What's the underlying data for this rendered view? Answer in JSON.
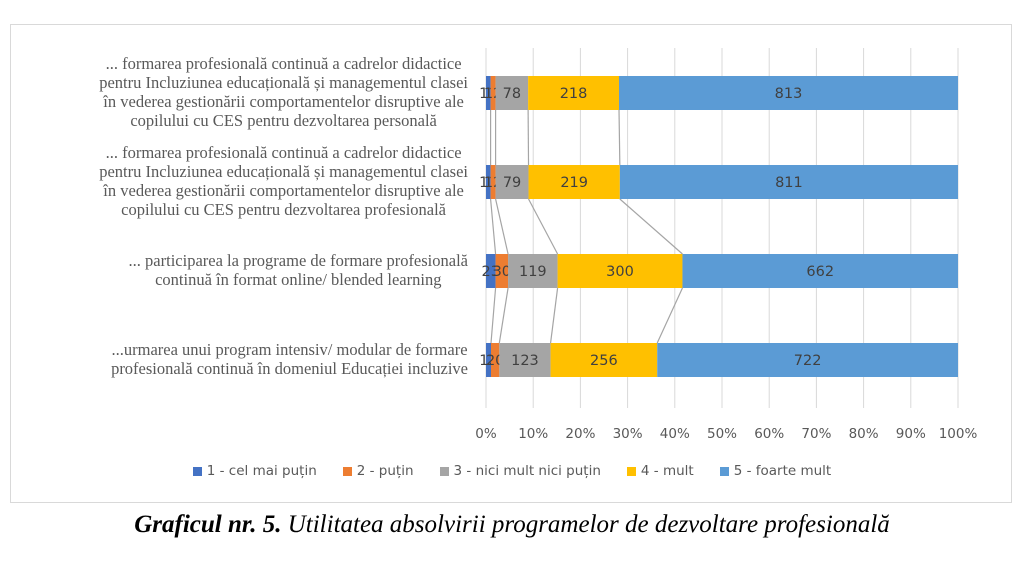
{
  "chart_data": {
    "type": "bar",
    "orientation": "horizontal",
    "stacked": "percent",
    "title": "",
    "xlabel": "",
    "ylabel": "",
    "xlim": [
      0,
      100
    ],
    "x_ticks": [
      "0%",
      "10%",
      "20%",
      "30%",
      "40%",
      "50%",
      "60%",
      "70%",
      "80%",
      "90%",
      "100%"
    ],
    "grid": true,
    "series_lines": true,
    "legend_position": "bottom",
    "categories": [
      [
        "... formarea profesională continuă a cadrelor didactice",
        "pentru Incluziunea educațională și managementul clasei",
        "în vederea gestionării comportamentelor disruptive ale",
        "copilului cu CES pentru dezvoltarea personală"
      ],
      [
        "... formarea profesională continuă a cadrelor didactice",
        "pentru Incluziunea educațională și managementul clasei",
        "în vederea gestionării comportamentelor disruptive ale",
        "copilului cu CES pentru dezvoltarea profesională"
      ],
      [
        "... participarea la programe de formare profesională",
        "continuă în format online/ blended learning"
      ],
      [
        "...urmarea unui program intensiv/ modular de formare",
        "profesională continuă în domeniul Educației incluzive"
      ]
    ],
    "series": [
      {
        "name": "1 - cel mai puțin",
        "color": "#4472c4",
        "values": [
          11,
          11,
          23,
          12
        ]
      },
      {
        "name": "2 - puțin",
        "color": "#ed7d31",
        "values": [
          12,
          12,
          30,
          20
        ]
      },
      {
        "name": "3 - nici mult nici puțin",
        "color": "#a5a5a5",
        "values": [
          78,
          79,
          119,
          123
        ]
      },
      {
        "name": "4 - mult",
        "color": "#ffc000",
        "values": [
          218,
          219,
          300,
          256
        ]
      },
      {
        "name": "5 - foarte mult",
        "color": "#5b9bd5",
        "values": [
          813,
          811,
          662,
          722
        ]
      }
    ]
  },
  "caption": {
    "bold": "Graficul nr. 5.",
    "text": " Utilitatea absolvirii programelor de dezvoltare profesională"
  }
}
